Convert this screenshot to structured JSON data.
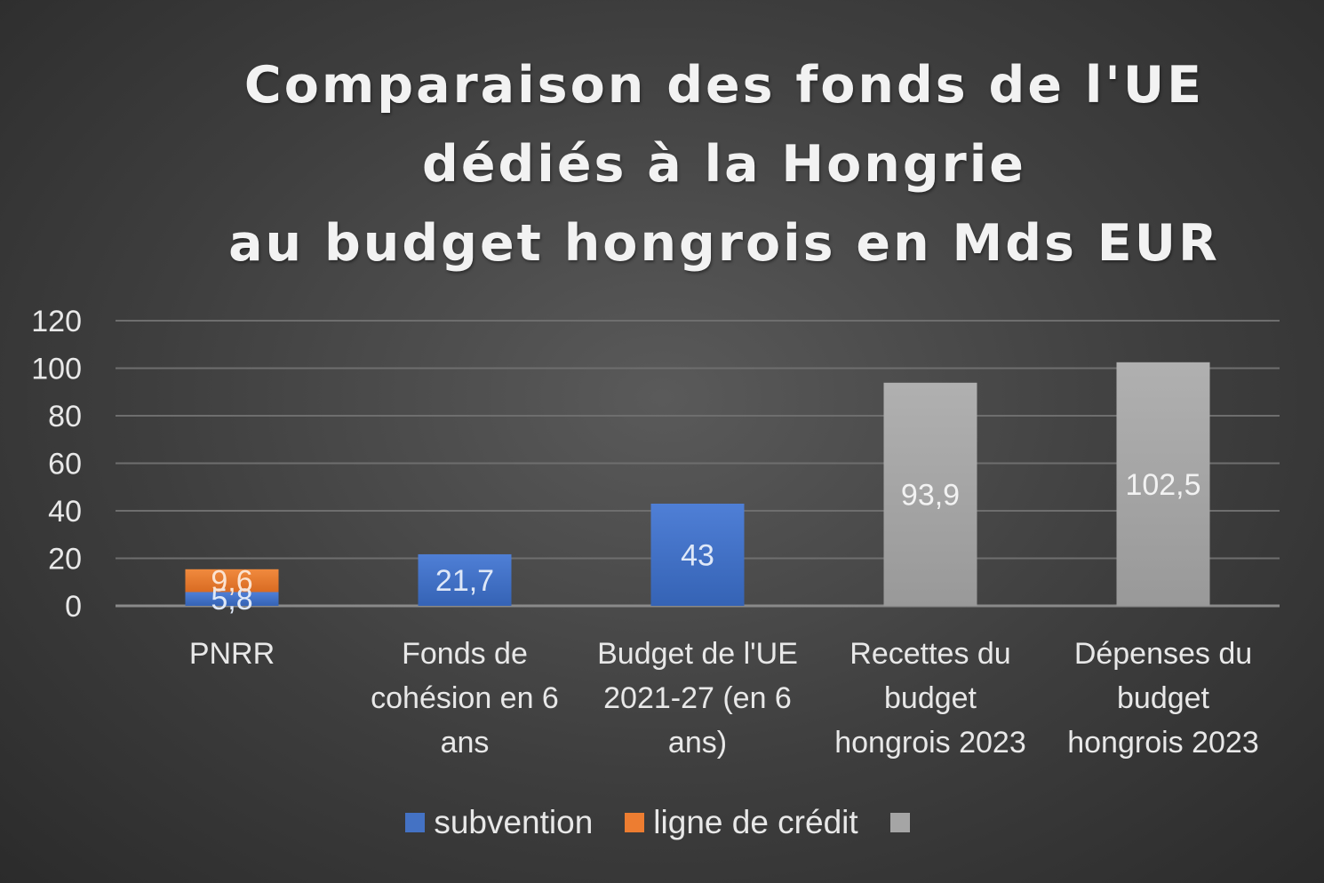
{
  "chart_data": {
    "type": "bar",
    "stacked": true,
    "title_lines": [
      "Comparaison des fonds de l'UE",
      "dédiés à la Hongrie",
      "au budget hongrois en Mds EUR"
    ],
    "categories": [
      [
        "PNRR"
      ],
      [
        "Fonds de",
        "cohésion en 6",
        "ans"
      ],
      [
        "Budget de l'UE",
        "2021-27 (en 6",
        "ans)"
      ],
      [
        "Recettes du",
        "budget",
        "hongrois 2023"
      ],
      [
        "Dépenses du",
        "budget",
        "hongrois 2023"
      ]
    ],
    "series": [
      {
        "name": "subvention",
        "color": "#4472c4",
        "values": [
          5.8,
          21.7,
          43,
          null,
          null
        ],
        "labels": [
          "5,8",
          "21,7",
          "43",
          "",
          ""
        ]
      },
      {
        "name": "ligne de crédit",
        "color": "#ed7d31",
        "values": [
          9.6,
          null,
          null,
          null,
          null
        ],
        "labels": [
          "9,6",
          "",
          "",
          "",
          ""
        ]
      },
      {
        "name": "",
        "color": "#a5a5a5",
        "values": [
          null,
          null,
          null,
          93.9,
          102.5
        ],
        "labels": [
          "",
          "",
          "",
          "93,9",
          "102,5"
        ]
      }
    ],
    "yticks": [
      "0",
      "20",
      "40",
      "60",
      "80",
      "100",
      "120"
    ],
    "ylim": [
      0,
      120
    ],
    "grid": true,
    "legend": "bottom"
  }
}
